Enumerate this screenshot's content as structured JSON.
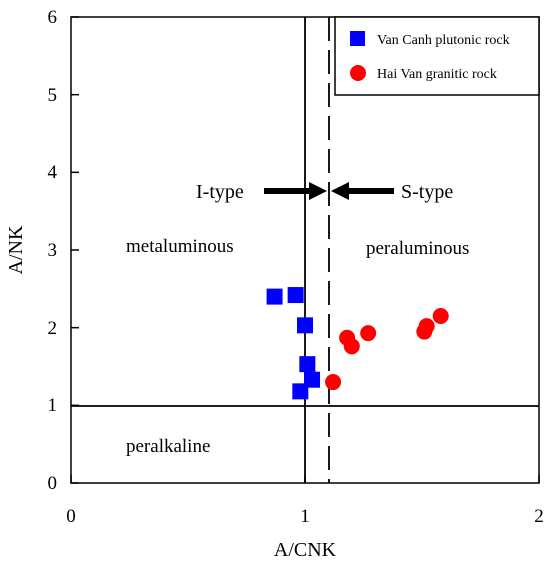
{
  "chart_data": {
    "type": "scatter",
    "xlabel": "A/CNK",
    "ylabel": "A/NK",
    "xlim": [
      0,
      2
    ],
    "ylim": [
      0,
      6
    ],
    "x_ticks": [
      "0",
      "1",
      "2"
    ],
    "y_ticks": [
      "0",
      "1",
      "2",
      "3",
      "4",
      "5",
      "6"
    ],
    "grid": false,
    "legend_position": "top-right",
    "series": [
      {
        "name": "Van Canh plutonic rock",
        "marker": "square",
        "color": "#0000ff",
        "points": [
          {
            "x": 0.87,
            "y": 2.4
          },
          {
            "x": 0.96,
            "y": 2.42
          },
          {
            "x": 1.0,
            "y": 2.03
          },
          {
            "x": 1.01,
            "y": 1.53
          },
          {
            "x": 1.03,
            "y": 1.33
          },
          {
            "x": 0.98,
            "y": 1.18
          }
        ]
      },
      {
        "name": "Hai Van granitic rock",
        "marker": "circle",
        "color": "#ff0000",
        "points": [
          {
            "x": 1.12,
            "y": 1.3
          },
          {
            "x": 1.18,
            "y": 1.87
          },
          {
            "x": 1.2,
            "y": 1.76
          },
          {
            "x": 1.27,
            "y": 1.93
          },
          {
            "x": 1.51,
            "y": 1.95
          },
          {
            "x": 1.52,
            "y": 2.02
          },
          {
            "x": 1.58,
            "y": 2.15
          }
        ]
      }
    ],
    "reference_lines": [
      {
        "orientation": "vertical",
        "value": 1.0,
        "style": "solid"
      },
      {
        "orientation": "vertical",
        "value": 1.1,
        "style": "dashed"
      },
      {
        "orientation": "horizontal",
        "value": 1.0,
        "style": "solid"
      }
    ],
    "annotations": {
      "metaluminous": "metaluminous",
      "peraluminous": "peraluminous",
      "peralkaline": "peralkaline",
      "i_type": "I-type",
      "s_type": "S-type"
    }
  }
}
